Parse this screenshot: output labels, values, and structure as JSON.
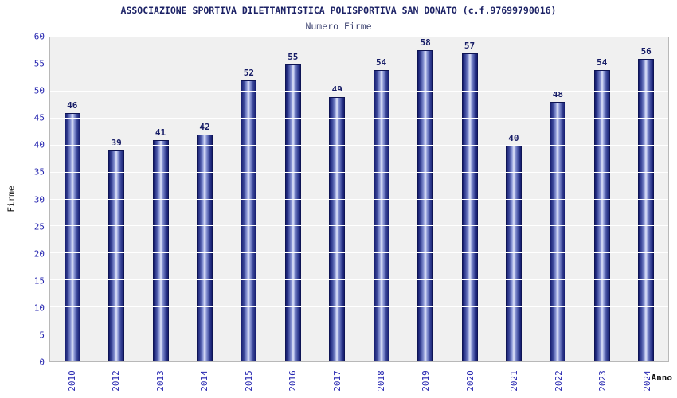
{
  "chart_data": {
    "type": "bar",
    "title": "ASSOCIAZIONE SPORTIVA DILETTANTISTICA POLISPORTIVA SAN DONATO (c.f.97699790016)",
    "subtitle": "Numero Firme",
    "xlabel": "Anno",
    "ylabel": "Firme",
    "categories": [
      "2010",
      "2012",
      "2013",
      "2014",
      "2015",
      "2016",
      "2017",
      "2018",
      "2019",
      "2020",
      "2021",
      "2022",
      "2023",
      "2024"
    ],
    "values": [
      46,
      39,
      41,
      42,
      52,
      55,
      49,
      54,
      58,
      57,
      40,
      48,
      54,
      56
    ],
    "ylim": [
      0,
      60
    ],
    "ytick_step": 5,
    "grid": true,
    "legend": "none",
    "colors": {
      "bar_dark": "#141c6e",
      "bar_light": "#e2e7fa",
      "bar_border": "#0e1454",
      "value_label": "#161c66",
      "tick_label": "#2525b0",
      "title": "#1c2266",
      "plot_background": "#f0f0f0",
      "gridline": "#ffffff"
    }
  }
}
